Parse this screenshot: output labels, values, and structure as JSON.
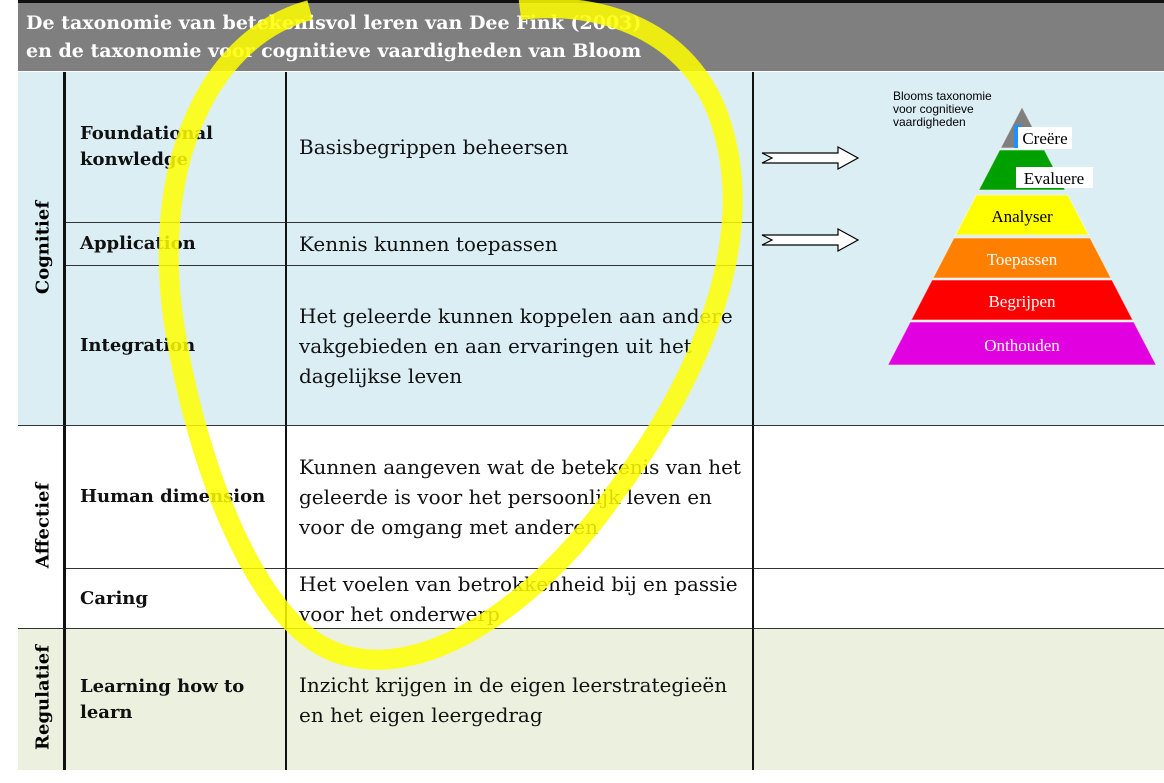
{
  "header": {
    "lines": [
      "De taxonomie van betekenisvol leren van Dee Fink (2003)",
      "en de taxonomie voor cognitieve vaardigheden van Bloom"
    ]
  },
  "sections": [
    {
      "label": "Cognitief",
      "rows": [
        {
          "level": "Foundational konwledge",
          "description": "Basisbegrippen beheersen"
        },
        {
          "level": "Application",
          "description": "Kennis kunnen toepassen"
        },
        {
          "level": "Integration",
          "description": "Het geleerde kunnen koppelen aan andere vakgebieden en aan ervaringen uit het dagelijkse leven"
        }
      ]
    },
    {
      "label": "Affectief",
      "rows": [
        {
          "level": "Human dimension",
          "description": "Kunnen aangeven wat de betekenis van het geleerde is voor het persoonlijk leven en voor de omgang met anderen"
        },
        {
          "level": "Caring",
          "description": "Het voelen van betrokkenheid bij en passie voor het onderwerp"
        }
      ]
    },
    {
      "label": "Regulatief",
      "rows": [
        {
          "level": "Learning how to learn",
          "description": "Inzicht krijgen in de eigen leerstrategieën en het eigen leergedrag"
        }
      ]
    }
  ],
  "pyramid": {
    "title": "Blooms taxonomie voor cognitieve vaardigheden",
    "levels": [
      "Creëre",
      "Evaluere",
      "Analyser",
      "Toepassen",
      "Begrijpen",
      "Onthouden"
    ]
  }
}
